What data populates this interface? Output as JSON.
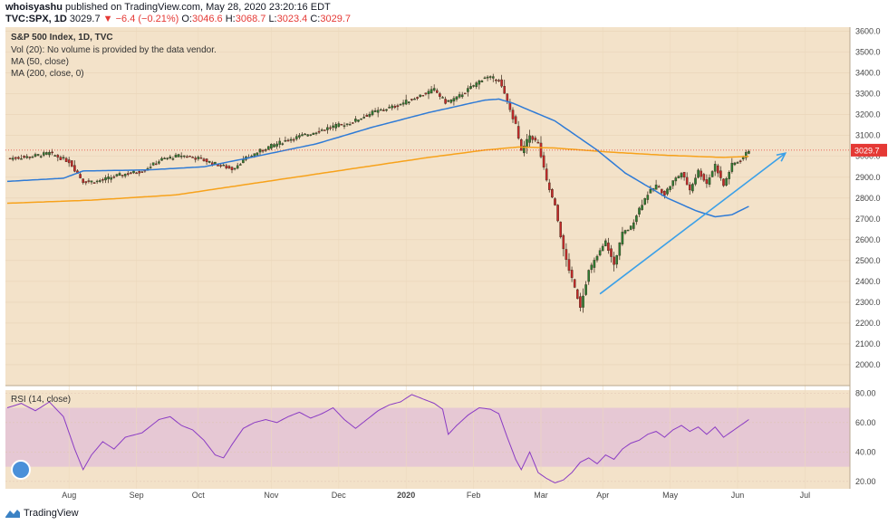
{
  "header": {
    "author": "whoisyashu",
    "published_text": "published on TradingView.com, May 28, 2020 23:20:16 EDT",
    "symbol": "TVC:SPX, 1D",
    "last": "3029.7",
    "change": "−6.4 (−0.21%)",
    "open_label": "O:",
    "open": "3046.6",
    "high_label": "H:",
    "high": "3068.7",
    "low_label": "L:",
    "low": "3023.4",
    "close_label": "C:",
    "close": "3029.7"
  },
  "legend": {
    "title": "S&P 500 Index, 1D, TVC",
    "vol": "Vol (20): No volume is provided by the data vendor.",
    "ma50": "MA (50, close)",
    "ma200": "MA (200, close, 0)",
    "rsi": "RSI (14, close)"
  },
  "footer": {
    "brand": "TradingView"
  },
  "colors": {
    "background": "#f3e2c9",
    "up": "#2e7d32",
    "down": "#c62828",
    "ma50": "#2f7bd6",
    "ma200": "#f7a21b",
    "rsi": "#8b3cc4",
    "rsi_band": "#e6c8d4",
    "trend": "#3ba0e8",
    "last_price": "#e53935"
  },
  "chart_data": [
    {
      "type": "candlestick",
      "ylim": [
        1900,
        3620
      ],
      "price_ticks": [
        "3600.0",
        "3500.0",
        "3400.0",
        "3300.0",
        "3200.0",
        "3100.0",
        "3000.0",
        "2900.0",
        "2800.0",
        "2700.0",
        "2600.0",
        "2500.0",
        "2400.0",
        "2300.0",
        "2200.0",
        "2100.0",
        "2000.0"
      ],
      "x_labels": [
        "Aug",
        "Sep",
        "Oct",
        "Nov",
        "Dec",
        "2020",
        "Feb",
        "Mar",
        "Apr",
        "May",
        "Jun",
        "Jul"
      ],
      "last_price_label": "3029.7",
      "last_price": 3029.7,
      "close_anchors": [
        [
          0,
          2990
        ],
        [
          8,
          2998
        ],
        [
          15,
          3015
        ],
        [
          22,
          2975
        ],
        [
          27,
          2880
        ],
        [
          32,
          2880
        ],
        [
          40,
          2910
        ],
        [
          48,
          2930
        ],
        [
          55,
          2985
        ],
        [
          62,
          3005
        ],
        [
          68,
          2990
        ],
        [
          75,
          2960
        ],
        [
          80,
          2940
        ],
        [
          85,
          2990
        ],
        [
          92,
          3040
        ],
        [
          100,
          3080
        ],
        [
          108,
          3110
        ],
        [
          115,
          3140
        ],
        [
          122,
          3160
        ],
        [
          130,
          3210
        ],
        [
          138,
          3240
        ],
        [
          145,
          3280
        ],
        [
          152,
          3320
        ],
        [
          156,
          3260
        ],
        [
          160,
          3280
        ],
        [
          165,
          3330
        ],
        [
          170,
          3380
        ],
        [
          175,
          3370
        ],
        [
          178,
          3260
        ],
        [
          181,
          3150
        ],
        [
          183,
          3020
        ],
        [
          186,
          3100
        ],
        [
          189,
          3060
        ],
        [
          192,
          2880
        ],
        [
          195,
          2760
        ],
        [
          198,
          2550
        ],
        [
          201,
          2410
        ],
        [
          204,
          2280
        ],
        [
          207,
          2450
        ],
        [
          210,
          2520
        ],
        [
          213,
          2590
        ],
        [
          216,
          2480
        ],
        [
          219,
          2630
        ],
        [
          222,
          2660
        ],
        [
          225,
          2750
        ],
        [
          228,
          2820
        ],
        [
          231,
          2860
        ],
        [
          234,
          2820
        ],
        [
          237,
          2880
        ],
        [
          240,
          2920
        ],
        [
          243,
          2840
        ],
        [
          246,
          2930
        ],
        [
          249,
          2870
        ],
        [
          252,
          2960
        ],
        [
          255,
          2860
        ],
        [
          258,
          2960
        ],
        [
          261,
          2980
        ],
        [
          264,
          3030
        ]
      ],
      "ma50_anchors": [
        [
          0,
          2880
        ],
        [
          20,
          2895
        ],
        [
          27,
          2930
        ],
        [
          50,
          2935
        ],
        [
          70,
          2950
        ],
        [
          85,
          2990
        ],
        [
          110,
          3060
        ],
        [
          130,
          3140
        ],
        [
          150,
          3210
        ],
        [
          170,
          3270
        ],
        [
          175,
          3275
        ],
        [
          180,
          3255
        ],
        [
          195,
          3170
        ],
        [
          210,
          3030
        ],
        [
          220,
          2920
        ],
        [
          235,
          2800
        ],
        [
          245,
          2740
        ],
        [
          252,
          2710
        ],
        [
          258,
          2720
        ],
        [
          264,
          2760
        ]
      ],
      "ma200_anchors": [
        [
          0,
          2775
        ],
        [
          30,
          2790
        ],
        [
          60,
          2815
        ],
        [
          90,
          2875
        ],
        [
          120,
          2935
        ],
        [
          150,
          2995
        ],
        [
          170,
          3030
        ],
        [
          182,
          3045
        ],
        [
          195,
          3040
        ],
        [
          215,
          3020
        ],
        [
          235,
          3005
        ],
        [
          255,
          2995
        ],
        [
          264,
          3000
        ]
      ],
      "trendline": {
        "from": [
          211,
          2340
        ],
        "to": [
          277,
          3015
        ]
      }
    },
    {
      "type": "line",
      "name": "RSI (14, close)",
      "ylim": [
        15,
        82
      ],
      "band": [
        30,
        70
      ],
      "y_ticks": [
        "80.00",
        "60.00",
        "40.00",
        "20.00"
      ],
      "anchors": [
        [
          0,
          70
        ],
        [
          5,
          73
        ],
        [
          10,
          68
        ],
        [
          15,
          74
        ],
        [
          20,
          64
        ],
        [
          24,
          42
        ],
        [
          27,
          28
        ],
        [
          30,
          38
        ],
        [
          34,
          47
        ],
        [
          38,
          42
        ],
        [
          42,
          50
        ],
        [
          48,
          53
        ],
        [
          54,
          62
        ],
        [
          58,
          64
        ],
        [
          62,
          58
        ],
        [
          66,
          55
        ],
        [
          70,
          48
        ],
        [
          74,
          38
        ],
        [
          77,
          36
        ],
        [
          80,
          45
        ],
        [
          84,
          56
        ],
        [
          88,
          60
        ],
        [
          92,
          62
        ],
        [
          96,
          60
        ],
        [
          100,
          64
        ],
        [
          104,
          67
        ],
        [
          108,
          63
        ],
        [
          112,
          66
        ],
        [
          116,
          70
        ],
        [
          120,
          62
        ],
        [
          124,
          56
        ],
        [
          128,
          62
        ],
        [
          132,
          68
        ],
        [
          136,
          72
        ],
        [
          140,
          74
        ],
        [
          144,
          79
        ],
        [
          148,
          76
        ],
        [
          152,
          73
        ],
        [
          155,
          69
        ],
        [
          157,
          52
        ],
        [
          160,
          58
        ],
        [
          164,
          65
        ],
        [
          168,
          70
        ],
        [
          172,
          69
        ],
        [
          175,
          66
        ],
        [
          178,
          50
        ],
        [
          181,
          35
        ],
        [
          183,
          28
        ],
        [
          186,
          40
        ],
        [
          189,
          26
        ],
        [
          192,
          22
        ],
        [
          195,
          19
        ],
        [
          198,
          21
        ],
        [
          201,
          26
        ],
        [
          204,
          33
        ],
        [
          207,
          36
        ],
        [
          210,
          32
        ],
        [
          213,
          38
        ],
        [
          216,
          35
        ],
        [
          219,
          42
        ],
        [
          222,
          46
        ],
        [
          225,
          48
        ],
        [
          228,
          52
        ],
        [
          231,
          54
        ],
        [
          234,
          50
        ],
        [
          237,
          55
        ],
        [
          240,
          58
        ],
        [
          243,
          54
        ],
        [
          246,
          57
        ],
        [
          249,
          52
        ],
        [
          252,
          57
        ],
        [
          255,
          50
        ],
        [
          258,
          54
        ],
        [
          261,
          58
        ],
        [
          264,
          62
        ]
      ]
    }
  ]
}
